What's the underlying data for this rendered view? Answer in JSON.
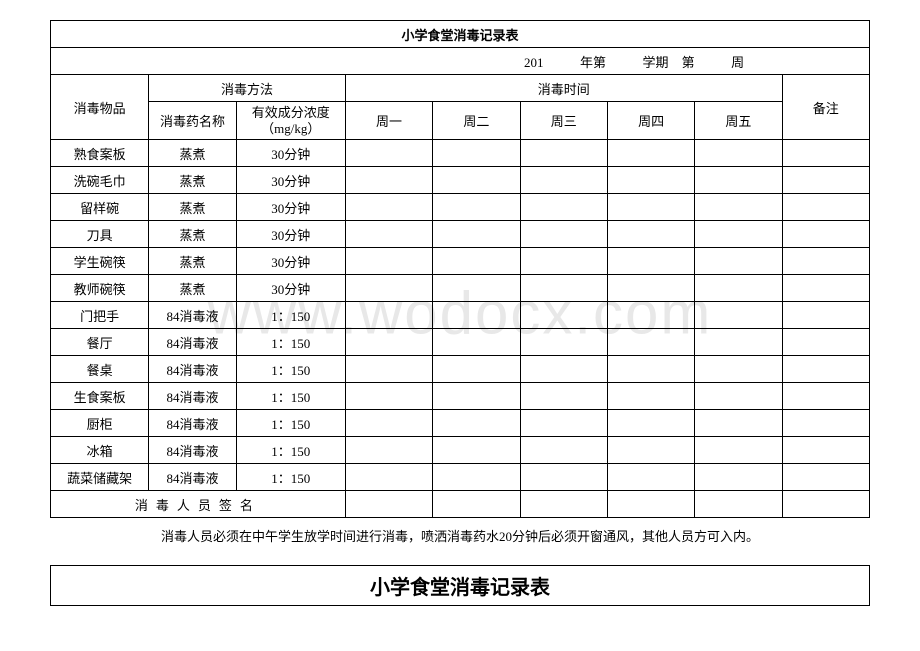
{
  "title": "小学食堂消毒记录表",
  "date_line": {
    "prefix": "201",
    "year_label": "年第",
    "term_label": "学期",
    "week_prefix": "第",
    "week_suffix": "周"
  },
  "headers": {
    "item": "消毒物品",
    "method_group": "消毒方法",
    "time_group": "消毒时间",
    "drug_name": "消毒药名称",
    "concentration_line1": "有效成分浓度",
    "concentration_line2": "（mg/kg）",
    "mon": "周一",
    "tue": "周二",
    "wed": "周三",
    "thu": "周四",
    "fri": "周五",
    "note": "备注"
  },
  "rows": [
    {
      "item": "熟食案板",
      "method": "蒸煮",
      "conc": "30分钟"
    },
    {
      "item": "洗碗毛巾",
      "method": "蒸煮",
      "conc": "30分钟"
    },
    {
      "item": "留样碗",
      "method": "蒸煮",
      "conc": "30分钟"
    },
    {
      "item": "刀具",
      "method": "蒸煮",
      "conc": "30分钟"
    },
    {
      "item": "学生碗筷",
      "method": "蒸煮",
      "conc": "30分钟"
    },
    {
      "item": "教师碗筷",
      "method": "蒸煮",
      "conc": "30分钟"
    },
    {
      "item": "门把手",
      "method": "84消毒液",
      "conc": "1：150"
    },
    {
      "item": "餐厅",
      "method": "84消毒液",
      "conc": "1：150"
    },
    {
      "item": "餐桌",
      "method": "84消毒液",
      "conc": "1：150"
    },
    {
      "item": "生食案板",
      "method": "84消毒液",
      "conc": "1：150"
    },
    {
      "item": "厨柜",
      "method": "84消毒液",
      "conc": "1：150"
    },
    {
      "item": "冰箱",
      "method": "84消毒液",
      "conc": "1：150"
    },
    {
      "item": "蔬菜储藏架",
      "method": "84消毒液",
      "conc": "1：150"
    }
  ],
  "signature": "消毒人员签名",
  "footnote": "消毒人员必须在中午学生放学时间进行消毒，喷洒消毒药水20分钟后必须开窗通风，其他人员方可入内。",
  "watermark": "www.wodocx.com",
  "styling": {
    "border_color": "#000000",
    "background_color": "#ffffff",
    "watermark_color": "#e8e8e8",
    "title_fontsize": 20,
    "body_fontsize": 13,
    "font_family": "SimSun"
  }
}
